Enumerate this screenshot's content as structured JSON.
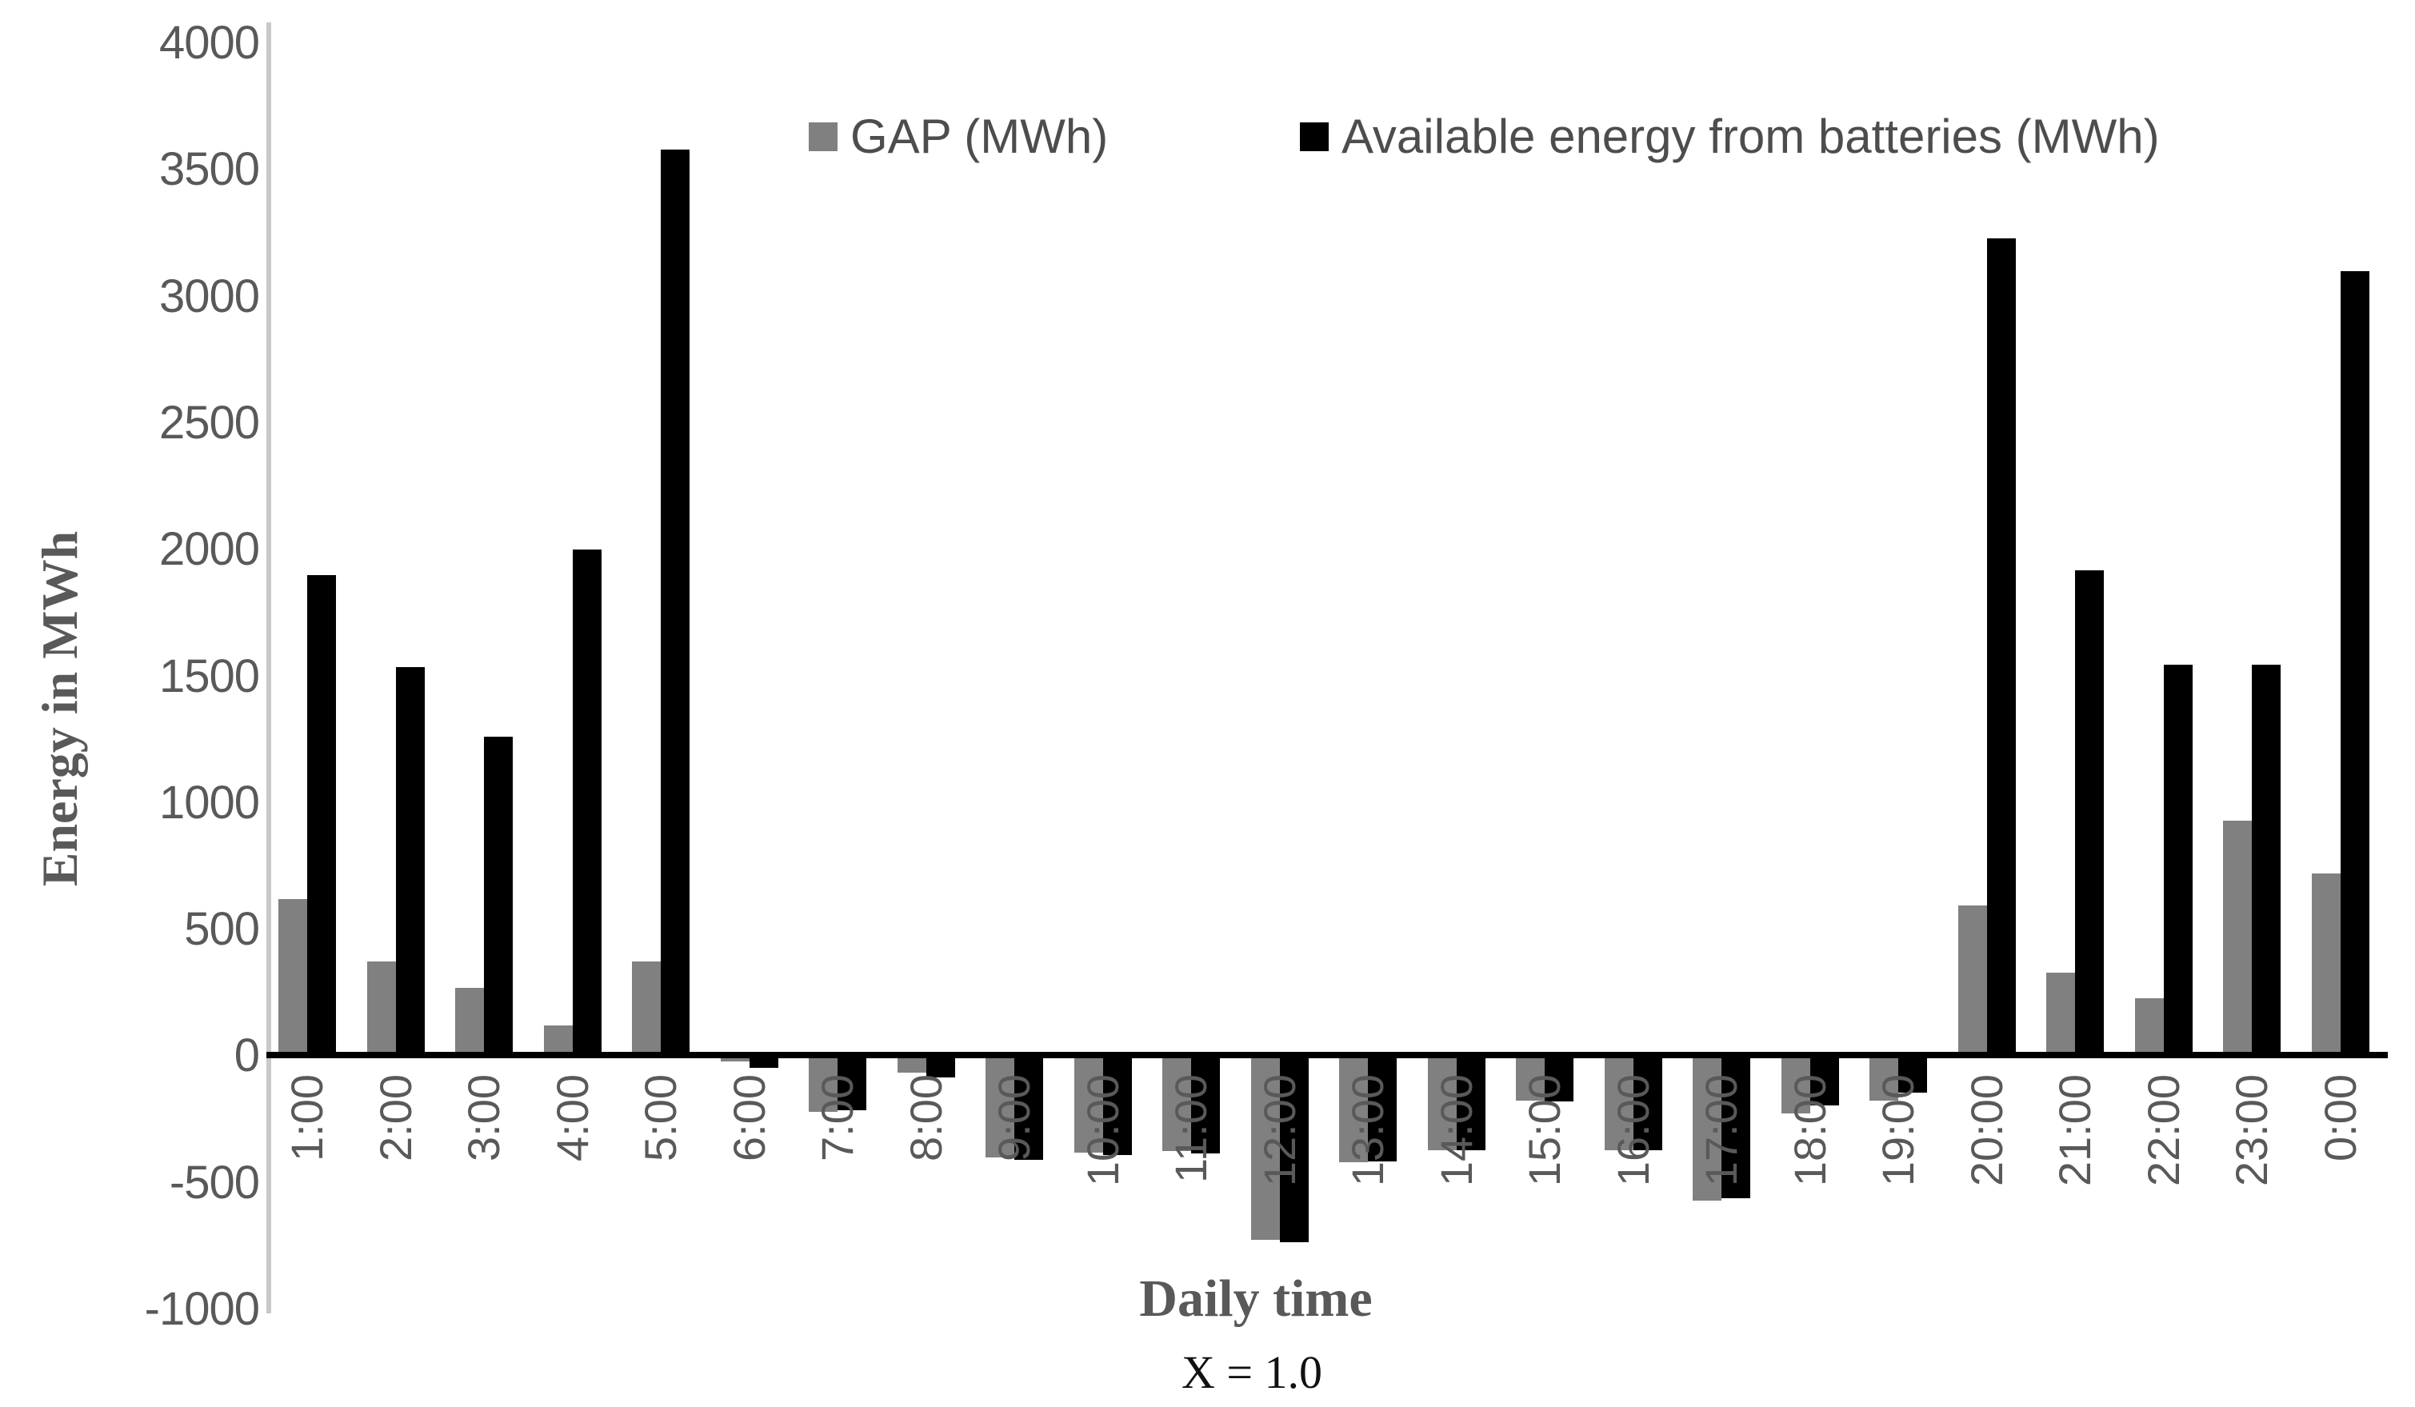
{
  "chart_data": {
    "type": "bar",
    "title": "",
    "xlabel": "Daily time",
    "ylabel": "Energy in MWh",
    "caption": "X = 1.0",
    "categories": [
      "1:00",
      "2:00",
      "3:00",
      "4:00",
      "5:00",
      "6:00",
      "7:00",
      "8:00",
      "9:00",
      "10:00",
      "11:00",
      "12:00",
      "13:00",
      "14:00",
      "15:00",
      "16:00",
      "17:00",
      "18:00",
      "19:00",
      "20:00",
      "21:00",
      "22:00",
      "23:00",
      "0:00"
    ],
    "series": [
      {
        "name": "GAP (MWh)",
        "color": "#808080",
        "values": [
          620,
          375,
          270,
          120,
          375,
          -20,
          -220,
          -65,
          -400,
          -380,
          -375,
          -725,
          -420,
          -370,
          -175,
          -370,
          -570,
          -225,
          -175,
          595,
          330,
          230,
          930,
          720
        ]
      },
      {
        "name": "Available energy from batteries (MWh)",
        "color": "#000000",
        "values": [
          1900,
          1535,
          1260,
          2000,
          3580,
          -45,
          -215,
          -85,
          -410,
          -390,
          -385,
          -735,
          -415,
          -370,
          -180,
          -370,
          -560,
          -195,
          -145,
          3230,
          1920,
          1545,
          1545,
          3100
        ]
      }
    ],
    "ylim": [
      -1000,
      4000
    ],
    "yticks": [
      4000,
      3500,
      3000,
      2500,
      2000,
      1500,
      1000,
      500,
      0,
      -500,
      -1000
    ],
    "grid": false,
    "legend_position": "top",
    "axis_line_color": "#c9c9c9",
    "zero_line_color": "#000000",
    "tick_label_color": "#595959"
  }
}
